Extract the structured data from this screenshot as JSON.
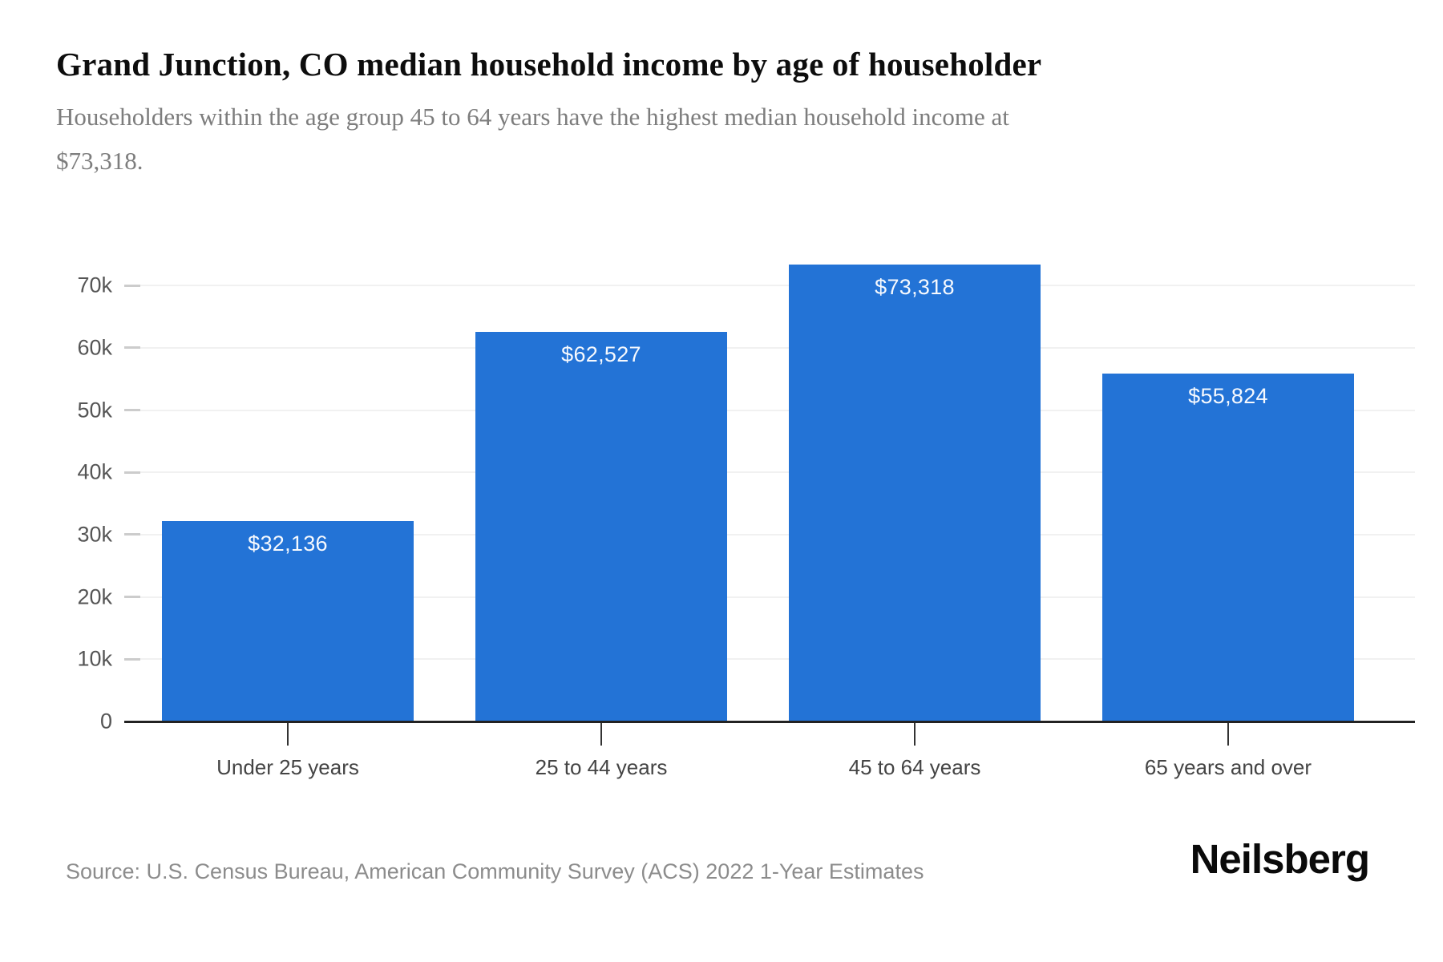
{
  "header": {
    "title": "Grand Junction, CO median household income by age of householder",
    "subtitle_lines": [
      "Householders within the age group 45 to 64 years have the highest median household income at",
      "$73,318."
    ]
  },
  "chart_data": {
    "type": "bar",
    "title": "Grand Junction, CO median household income by age of householder",
    "categories": [
      "Under 25 years",
      "25 to 44 years",
      "45 to 64 years",
      "65 years and over"
    ],
    "values": [
      32136,
      62527,
      73318,
      55824
    ],
    "value_labels": [
      "$32,136",
      "$62,527",
      "$73,318",
      "$55,824"
    ],
    "xlabel": "",
    "ylabel": "",
    "ylim": [
      0,
      75000
    ],
    "y_tick_values": [
      0,
      10000,
      20000,
      30000,
      40000,
      50000,
      60000,
      70000
    ],
    "y_tick_labels": [
      "0",
      "10k",
      "20k",
      "30k",
      "40k",
      "50k",
      "60k",
      "70k"
    ],
    "grid": "horizontal",
    "legend": "none",
    "bar_color": "#2373d6",
    "value_label_position": "inside-top"
  },
  "footer": {
    "source": "Source: U.S. Census Bureau, American Community Survey (ACS) 2022 1-Year Estimates",
    "brand": "Neilsberg"
  }
}
